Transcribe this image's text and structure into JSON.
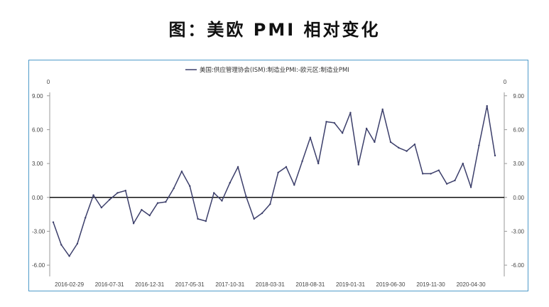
{
  "title": "图：美欧 PMI 相对变化",
  "chart_data": {
    "type": "line",
    "title": "",
    "legend": "top-center",
    "series": [
      {
        "name": "美国:供应管理协会(ISM):制造业PMI:-欧元区:制造业PMI",
        "color": "#3c3f6b",
        "values": [
          -2.2,
          -4.2,
          -5.2,
          -4.1,
          -1.8,
          0.2,
          -0.9,
          -0.2,
          0.4,
          0.6,
          -2.3,
          -1.1,
          -1.6,
          -0.5,
          -0.4,
          0.8,
          2.3,
          1.0,
          -1.9,
          -2.1,
          0.4,
          -0.3,
          1.3,
          2.7,
          0.1,
          -1.9,
          -1.4,
          -0.6,
          2.2,
          2.7,
          1.1,
          3.2,
          5.3,
          3.0,
          6.7,
          6.6,
          5.7,
          7.5,
          2.9,
          6.1,
          4.9,
          7.8,
          4.9,
          4.4,
          4.1,
          4.7,
          2.1,
          2.1,
          2.4,
          1.2,
          1.5,
          3.0,
          0.9,
          4.6,
          8.1,
          3.7
        ]
      }
    ],
    "x_tick_labels": [
      "2016-02-29",
      "2016-07-31",
      "2016-12-31",
      "2017-05-31",
      "2017-10-31",
      "2018-03-31",
      "2018-08-31",
      "2019-01-31",
      "2019-06-30",
      "2019-11-30",
      "2020-04-30"
    ],
    "y_ticks": [
      "9.00",
      "6.00",
      "3.00",
      "0.00",
      "-3.00",
      "-6.00"
    ],
    "y_tick_values": [
      9,
      6,
      3,
      0,
      -3,
      -6
    ],
    "ylim": [
      -7.0,
      9.3
    ],
    "left_axis_label": "0",
    "right_axis_label": "0",
    "grid": false,
    "zero_line": true
  }
}
